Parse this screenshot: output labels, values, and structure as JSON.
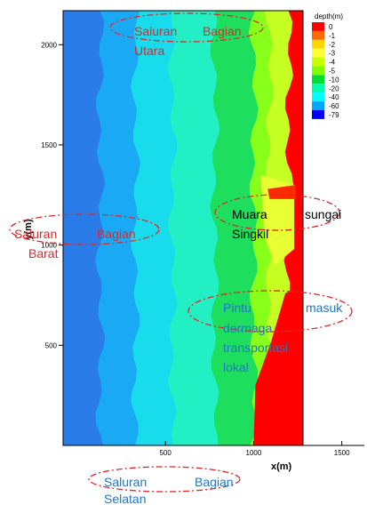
{
  "chart_data": {
    "type": "heatmap",
    "xlabel": "x(m)",
    "ylabel": "y(m)",
    "x_ticks": [
      "500",
      "1000",
      "1500"
    ],
    "y_ticks": [
      "2000",
      "1500",
      "1000",
      "500"
    ],
    "xlim": [
      -80,
      1520
    ],
    "ylim": [
      0,
      2170
    ],
    "legend": {
      "title": "depth(m)",
      "placement": "top-right",
      "levels": [
        {
          "label": "0",
          "color": "#ff0000"
        },
        {
          "label": "-1",
          "color": "#ff6a00"
        },
        {
          "label": "-2",
          "color": "#ffd700"
        },
        {
          "label": "-3",
          "color": "#ffff33"
        },
        {
          "label": "-4",
          "color": "#c8ff00"
        },
        {
          "label": "-5",
          "color": "#7fff00"
        },
        {
          "label": "-10",
          "color": "#00dd33"
        },
        {
          "label": "-20",
          "color": "#00ffaa"
        },
        {
          "label": "-40",
          "color": "#00ffff"
        },
        {
          "label": "-60",
          "color": "#00a8ff"
        },
        {
          "label": "-79",
          "color": "#0000ff"
        }
      ]
    },
    "depth_bands": [
      {
        "level": "-79",
        "color": "#2a7de8",
        "x_end": 130
      },
      {
        "level": "-60",
        "color": "#1aaaf5",
        "x_end": 330
      },
      {
        "level": "-40",
        "color": "#18dcec",
        "x_end": 540
      },
      {
        "level": "-20",
        "color": "#22f0c4",
        "x_end": 780
      },
      {
        "level": "-10",
        "color": "#1ede5e",
        "x_end": 1000
      },
      {
        "level": "-5",
        "color": "#88ff1a",
        "x_end": 1090
      },
      {
        "level": "-4",
        "color": "#c6ff22",
        "x_end": 1200
      },
      {
        "level": "0",
        "color": "#ff0000",
        "x_end": 1280
      }
    ]
  },
  "annotations": [
    {
      "id": "north",
      "words": [
        "Saluran",
        "Bagian"
      ],
      "line2": "Utara",
      "color": "#e0282a"
    },
    {
      "id": "west",
      "words": [
        "Saluran",
        "Bagian"
      ],
      "line2": "Barat",
      "color": "#e0282a"
    },
    {
      "id": "estuary",
      "words": [
        "Muara",
        "sungai"
      ],
      "line2": "Singkil",
      "color": "#000000"
    },
    {
      "id": "dock",
      "words": [
        "Pintu",
        "masuk"
      ],
      "line2": "dermaga",
      "line3": "transportasi",
      "line4": "lokal",
      "color": "#1f78c8"
    },
    {
      "id": "south",
      "words": [
        "Saluran",
        "Bagian"
      ],
      "line2": "Selatan",
      "color": "#1f78c8"
    }
  ]
}
